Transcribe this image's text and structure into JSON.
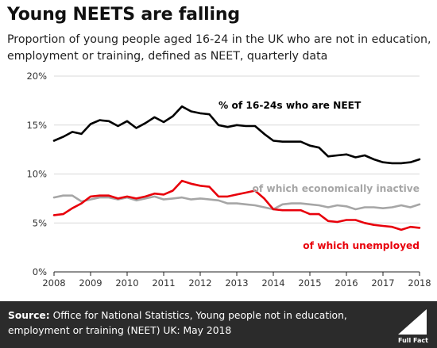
{
  "header": {
    "title": "Young NEETS are falling",
    "subtitle": "Proportion of young people aged 16-24 in the UK who are not in education, employment or training, defined as NEET, quarterly data"
  },
  "footer": {
    "source_label": "Source:",
    "source_text": "Office for National Statistics, Young people not in education, employment or training (NEET) UK: May 2018",
    "logo_text": "Full Fact"
  },
  "colors": {
    "neet": "#000000",
    "inactive": "#a6a6a6",
    "unemployed": "#e8000b",
    "footer_bg": "#2b2b2b",
    "grid": "#d9d9d9"
  },
  "chart_data": {
    "type": "line",
    "title": "",
    "xlabel": "",
    "ylabel": "",
    "x_ticks": [
      "2008",
      "2009",
      "2010",
      "2011",
      "2012",
      "2013",
      "2014",
      "2015",
      "2016",
      "2017",
      "2018"
    ],
    "y_ticks": [
      "0%",
      "5%",
      "10%",
      "15%",
      "20%"
    ],
    "xlim": [
      2008,
      2018
    ],
    "ylim": [
      0,
      20
    ],
    "grid": "horizontal",
    "x": [
      2008.0,
      2008.25,
      2008.5,
      2008.75,
      2009.0,
      2009.25,
      2009.5,
      2009.75,
      2010.0,
      2010.25,
      2010.5,
      2010.75,
      2011.0,
      2011.25,
      2011.5,
      2011.75,
      2012.0,
      2012.25,
      2012.5,
      2012.75,
      2013.0,
      2013.25,
      2013.5,
      2013.75,
      2014.0,
      2014.25,
      2014.5,
      2014.75,
      2015.0,
      2015.25,
      2015.5,
      2015.75,
      2016.0,
      2016.25,
      2016.5,
      2016.75,
      2017.0,
      2017.25,
      2017.5,
      2017.75,
      2018.0
    ],
    "series": [
      {
        "name": "% of 16-24s who are NEET",
        "color": "#000000",
        "values": [
          13.4,
          13.8,
          14.3,
          14.1,
          15.1,
          15.5,
          15.4,
          14.9,
          15.4,
          14.7,
          15.2,
          15.8,
          15.3,
          15.9,
          16.9,
          16.4,
          16.2,
          16.1,
          15.0,
          14.8,
          15.0,
          14.9,
          14.9,
          14.1,
          13.4,
          13.3,
          13.3,
          13.3,
          12.9,
          12.7,
          11.8,
          11.9,
          12.0,
          11.7,
          11.9,
          11.5,
          11.2,
          11.1,
          11.1,
          11.2,
          11.5
        ]
      },
      {
        "name": "of which economically inactive",
        "color": "#a6a6a6",
        "values": [
          7.6,
          7.8,
          7.8,
          7.2,
          7.4,
          7.6,
          7.6,
          7.4,
          7.6,
          7.3,
          7.5,
          7.7,
          7.4,
          7.5,
          7.6,
          7.4,
          7.5,
          7.4,
          7.3,
          7.0,
          7.0,
          6.9,
          6.8,
          6.6,
          6.4,
          6.9,
          7.0,
          7.0,
          6.9,
          6.8,
          6.6,
          6.8,
          6.7,
          6.4,
          6.6,
          6.6,
          6.5,
          6.6,
          6.8,
          6.6,
          6.9
        ]
      },
      {
        "name": "of which unemployed",
        "color": "#e8000b",
        "values": [
          5.8,
          5.9,
          6.5,
          7.0,
          7.7,
          7.8,
          7.8,
          7.5,
          7.7,
          7.5,
          7.7,
          8.0,
          7.9,
          8.3,
          9.3,
          9.0,
          8.8,
          8.7,
          7.7,
          7.7,
          7.9,
          8.1,
          8.3,
          7.5,
          6.4,
          6.3,
          6.3,
          6.3,
          5.9,
          5.9,
          5.2,
          5.1,
          5.3,
          5.3,
          5.0,
          4.8,
          4.7,
          4.6,
          4.3,
          4.6,
          4.5
        ]
      }
    ],
    "annotations": [
      {
        "text": "% of 16-24s who are NEET",
        "series": "% of 16-24s who are NEET"
      },
      {
        "text": "of which economically inactive",
        "series": "of which economically inactive"
      },
      {
        "text": "of which unemployed",
        "series": "of which unemployed"
      }
    ]
  }
}
